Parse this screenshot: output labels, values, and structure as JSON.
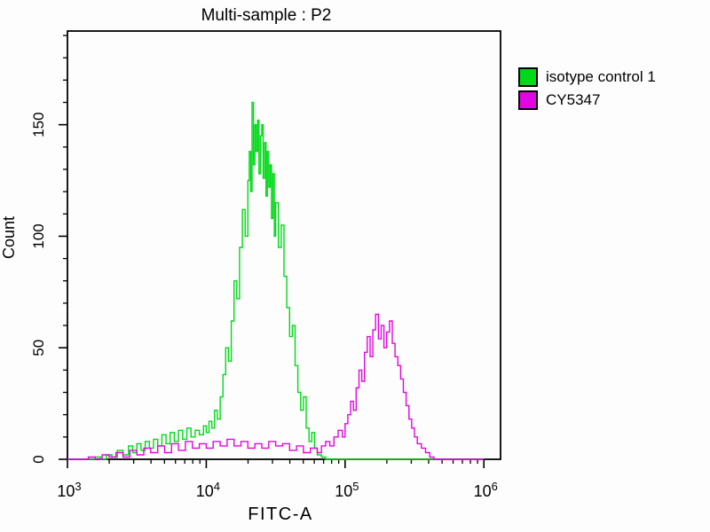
{
  "chart_data": {
    "type": "line",
    "subtype": "flow-cytometry-histogram-overlay",
    "title": "Multi-sample : P2",
    "xlabel": "FITC-A",
    "ylabel": "Count",
    "grid": false,
    "legend_position": "outside-top-right",
    "x_axis": {
      "scale": "log10",
      "min_log10": 3,
      "max_log10": 6.12,
      "major_tick_exponents": [
        3,
        4,
        5,
        6
      ],
      "tick_label_base": "10",
      "minor_ticks": "log-decade-2-to-9"
    },
    "y_axis": {
      "min": 0,
      "max": 192,
      "major_ticks": [
        0,
        50,
        100,
        150
      ],
      "minor_tick_step": 10
    },
    "series": [
      {
        "name": "isotype control 1",
        "color": "#00D917",
        "peak_log10x": 4.33,
        "peak_count": 160,
        "points": [
          [
            3.0,
            0
          ],
          [
            3.12,
            0
          ],
          [
            3.2,
            1
          ],
          [
            3.24,
            0
          ],
          [
            3.28,
            2
          ],
          [
            3.32,
            1
          ],
          [
            3.36,
            4
          ],
          [
            3.4,
            2
          ],
          [
            3.44,
            6
          ],
          [
            3.47,
            3
          ],
          [
            3.5,
            7
          ],
          [
            3.53,
            4
          ],
          [
            3.56,
            8
          ],
          [
            3.59,
            5
          ],
          [
            3.62,
            9
          ],
          [
            3.65,
            6
          ],
          [
            3.68,
            11
          ],
          [
            3.71,
            7
          ],
          [
            3.74,
            12
          ],
          [
            3.77,
            8
          ],
          [
            3.8,
            13
          ],
          [
            3.83,
            9
          ],
          [
            3.86,
            14
          ],
          [
            3.89,
            10
          ],
          [
            3.92,
            13
          ],
          [
            3.95,
            11
          ],
          [
            3.98,
            15
          ],
          [
            4.0,
            12
          ],
          [
            4.02,
            17
          ],
          [
            4.04,
            14
          ],
          [
            4.06,
            22
          ],
          [
            4.08,
            18
          ],
          [
            4.1,
            28
          ],
          [
            4.12,
            38
          ],
          [
            4.14,
            50
          ],
          [
            4.16,
            44
          ],
          [
            4.18,
            62
          ],
          [
            4.2,
            80
          ],
          [
            4.22,
            72
          ],
          [
            4.24,
            95
          ],
          [
            4.26,
            112
          ],
          [
            4.28,
            100
          ],
          [
            4.3,
            125
          ],
          [
            4.31,
            138
          ],
          [
            4.32,
            120
          ],
          [
            4.33,
            160
          ],
          [
            4.34,
            132
          ],
          [
            4.35,
            150
          ],
          [
            4.36,
            138
          ],
          [
            4.37,
            152
          ],
          [
            4.38,
            128
          ],
          [
            4.39,
            145
          ],
          [
            4.4,
            150
          ],
          [
            4.41,
            126
          ],
          [
            4.42,
            142
          ],
          [
            4.43,
            118
          ],
          [
            4.44,
            138
          ],
          [
            4.45,
            122
          ],
          [
            4.46,
            132
          ],
          [
            4.47,
            108
          ],
          [
            4.48,
            128
          ],
          [
            4.49,
            100
          ],
          [
            4.5,
            115
          ],
          [
            4.52,
            95
          ],
          [
            4.54,
            105
          ],
          [
            4.56,
            82
          ],
          [
            4.58,
            68
          ],
          [
            4.6,
            55
          ],
          [
            4.62,
            60
          ],
          [
            4.64,
            42
          ],
          [
            4.66,
            30
          ],
          [
            4.68,
            22
          ],
          [
            4.7,
            28
          ],
          [
            4.72,
            14
          ],
          [
            4.74,
            8
          ],
          [
            4.76,
            12
          ],
          [
            4.78,
            5
          ],
          [
            4.8,
            2
          ],
          [
            4.83,
            1
          ],
          [
            4.86,
            0
          ],
          [
            5.0,
            0
          ],
          [
            6.0,
            0
          ]
        ]
      },
      {
        "name": "CY5347",
        "color": "#E206E2",
        "peak_log10x": 5.22,
        "peak_count": 65,
        "points": [
          [
            3.0,
            0
          ],
          [
            3.1,
            0
          ],
          [
            3.15,
            1
          ],
          [
            3.2,
            0
          ],
          [
            3.25,
            2
          ],
          [
            3.3,
            1
          ],
          [
            3.35,
            3
          ],
          [
            3.4,
            1
          ],
          [
            3.45,
            4
          ],
          [
            3.5,
            2
          ],
          [
            3.55,
            5
          ],
          [
            3.6,
            3
          ],
          [
            3.65,
            6
          ],
          [
            3.7,
            3
          ],
          [
            3.75,
            7
          ],
          [
            3.8,
            4
          ],
          [
            3.85,
            8
          ],
          [
            3.9,
            5
          ],
          [
            3.95,
            7
          ],
          [
            4.0,
            5
          ],
          [
            4.05,
            8
          ],
          [
            4.1,
            6
          ],
          [
            4.15,
            9
          ],
          [
            4.2,
            6
          ],
          [
            4.25,
            8
          ],
          [
            4.3,
            5
          ],
          [
            4.35,
            7
          ],
          [
            4.4,
            5
          ],
          [
            4.45,
            8
          ],
          [
            4.5,
            6
          ],
          [
            4.55,
            7
          ],
          [
            4.6,
            4
          ],
          [
            4.65,
            6
          ],
          [
            4.7,
            3
          ],
          [
            4.75,
            5
          ],
          [
            4.8,
            3
          ],
          [
            4.83,
            6
          ],
          [
            4.86,
            8
          ],
          [
            4.89,
            6
          ],
          [
            4.92,
            10
          ],
          [
            4.95,
            13
          ],
          [
            4.98,
            10
          ],
          [
            5.0,
            16
          ],
          [
            5.02,
            20
          ],
          [
            5.04,
            26
          ],
          [
            5.06,
            22
          ],
          [
            5.08,
            32
          ],
          [
            5.1,
            40
          ],
          [
            5.12,
            35
          ],
          [
            5.14,
            48
          ],
          [
            5.16,
            55
          ],
          [
            5.18,
            46
          ],
          [
            5.2,
            58
          ],
          [
            5.22,
            65
          ],
          [
            5.24,
            54
          ],
          [
            5.26,
            60
          ],
          [
            5.28,
            50
          ],
          [
            5.3,
            57
          ],
          [
            5.32,
            62
          ],
          [
            5.34,
            52
          ],
          [
            5.36,
            46
          ],
          [
            5.38,
            42
          ],
          [
            5.4,
            36
          ],
          [
            5.42,
            30
          ],
          [
            5.44,
            24
          ],
          [
            5.46,
            18
          ],
          [
            5.48,
            14
          ],
          [
            5.5,
            10
          ],
          [
            5.52,
            7
          ],
          [
            5.55,
            5
          ],
          [
            5.58,
            3
          ],
          [
            5.61,
            1
          ],
          [
            5.64,
            0
          ],
          [
            5.8,
            0
          ],
          [
            6.0,
            0
          ]
        ]
      }
    ],
    "colors": {
      "axis": "#000000",
      "background": "#fdfdfd",
      "text": "#000000"
    }
  }
}
